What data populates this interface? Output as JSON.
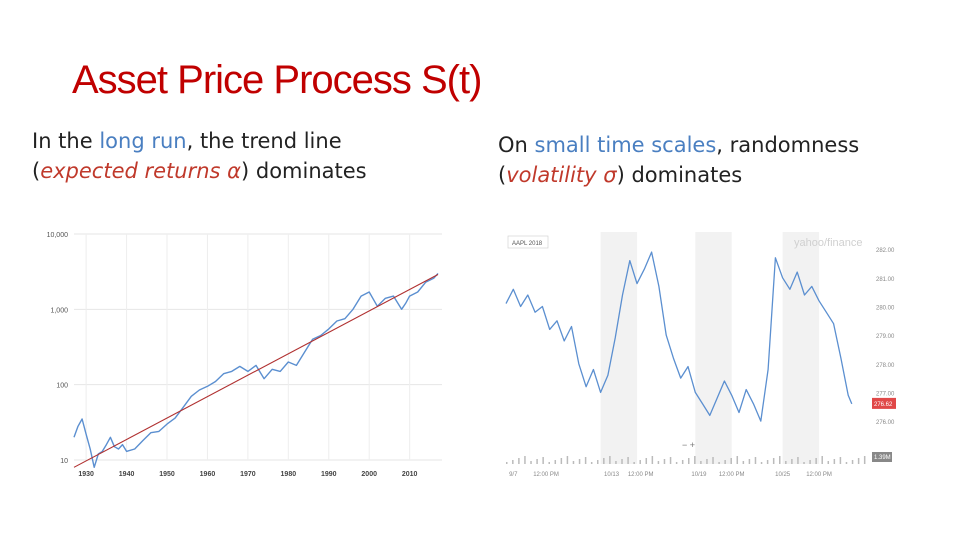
{
  "slide": {
    "title": "Asset Price Process S(t)",
    "left_text": {
      "prefix": "In the ",
      "highlight": "long run",
      "middle": ", the trend line",
      "line2_open": "(",
      "emph": "expected returns α",
      "line2_close": ") dominates"
    },
    "right_text": {
      "prefix": "On ",
      "highlight": "small time scales",
      "middle": ", randomness",
      "line2_open": "(",
      "emph": "volatility σ",
      "line2_close": ") dominates"
    }
  },
  "colors": {
    "title": "#c00000",
    "highlight": "#4a7fc1",
    "emph": "#c0392b",
    "series": "#5b8fd0",
    "trend": "#b03030",
    "price_badge": "#e04848"
  },
  "chart_data": [
    {
      "type": "line",
      "scale": "log",
      "xlim": [
        1927,
        2018
      ],
      "ylim": [
        10,
        10000
      ],
      "y_ticks": [
        {
          "value": 10,
          "label": "10"
        },
        {
          "value": 100,
          "label": "100"
        },
        {
          "value": 1000,
          "label": "1,000"
        },
        {
          "value": 10000,
          "label": "10,000"
        }
      ],
      "x_ticks": [
        {
          "value": 1930,
          "label": "1930"
        },
        {
          "value": 1940,
          "label": "1940"
        },
        {
          "value": 1950,
          "label": "1950"
        },
        {
          "value": 1960,
          "label": "1960"
        },
        {
          "value": 1970,
          "label": "1970"
        },
        {
          "value": 1980,
          "label": "1980"
        },
        {
          "value": 1990,
          "label": "1990"
        },
        {
          "value": 2000,
          "label": "2000"
        },
        {
          "value": 2010,
          "label": "2010"
        }
      ],
      "grid": true,
      "series": [
        {
          "x": [
            1927,
            1928,
            1929,
            1930,
            1931,
            1932,
            1933,
            1934,
            1935,
            1936,
            1937,
            1938,
            1939,
            1940,
            1942,
            1944,
            1946,
            1948,
            1950,
            1952,
            1954,
            1956,
            1958,
            1960,
            1962,
            1964,
            1966,
            1968,
            1970,
            1972,
            1974,
            1976,
            1978,
            1980,
            1982,
            1984,
            1986,
            1988,
            1990,
            1992,
            1994,
            1996,
            1998,
            2000,
            2002,
            2004,
            2006,
            2008,
            2009,
            2010,
            2012,
            2014,
            2016,
            2017
          ],
          "y": [
            20,
            28,
            35,
            22,
            14,
            8,
            12,
            13,
            16,
            20,
            15,
            14,
            16,
            13,
            14,
            18,
            23,
            24,
            30,
            36,
            50,
            70,
            85,
            95,
            110,
            140,
            150,
            175,
            150,
            180,
            120,
            160,
            150,
            200,
            180,
            270,
            400,
            450,
            550,
            700,
            750,
            1000,
            1500,
            1700,
            1100,
            1400,
            1500,
            1000,
            1200,
            1500,
            1700,
            2300,
            2600,
            3000
          ]
        }
      ],
      "trend": {
        "x": [
          1927,
          2017
        ],
        "y": [
          8,
          2900
        ]
      }
    },
    {
      "type": "line",
      "series_label": "AAPL 2018",
      "watermark": "yahoo/finance",
      "y_ticks": [
        {
          "value": 282,
          "label": "282.00"
        },
        {
          "value": 281,
          "label": "281.00"
        },
        {
          "value": 280,
          "label": "280.00"
        },
        {
          "value": 279,
          "label": "279.00"
        },
        {
          "value": 278,
          "label": "278.00"
        },
        {
          "value": 277,
          "label": "277.00"
        },
        {
          "value": 276,
          "label": "276.00"
        }
      ],
      "ylim": [
        275.2,
        282.6
      ],
      "x_ticks": [
        {
          "pos": 0.02,
          "label": "9/7"
        },
        {
          "pos": 0.11,
          "label": "12:00 PM"
        },
        {
          "pos": 0.29,
          "label": "10/13"
        },
        {
          "pos": 0.37,
          "label": "12:00 PM"
        },
        {
          "pos": 0.53,
          "label": "10/19"
        },
        {
          "pos": 0.62,
          "label": "12:00 PM"
        },
        {
          "pos": 0.76,
          "label": "10/25"
        },
        {
          "pos": 0.86,
          "label": "12:00 PM"
        }
      ],
      "price_badge": "276.62",
      "volume_badge": "1.39M",
      "zoom_label": "− +",
      "series": [
        {
          "x": [
            0,
            0.02,
            0.04,
            0.06,
            0.08,
            0.1,
            0.12,
            0.14,
            0.16,
            0.18,
            0.2,
            0.22,
            0.24,
            0.26,
            0.28,
            0.3,
            0.32,
            0.34,
            0.36,
            0.38,
            0.4,
            0.42,
            0.44,
            0.46,
            0.48,
            0.5,
            0.52,
            0.54,
            0.56,
            0.58,
            0.6,
            0.62,
            0.64,
            0.66,
            0.68,
            0.7,
            0.72,
            0.74,
            0.76,
            0.78,
            0.8,
            0.82,
            0.84,
            0.86,
            0.88,
            0.9,
            0.92,
            0.94,
            0.95
          ],
          "y": [
            280.1,
            280.6,
            280.0,
            280.4,
            279.8,
            280.0,
            279.2,
            279.5,
            278.8,
            279.3,
            278.0,
            277.2,
            277.8,
            277.0,
            277.6,
            278.9,
            280.4,
            281.6,
            280.8,
            281.3,
            281.9,
            280.7,
            279.0,
            278.2,
            277.5,
            277.9,
            277.0,
            276.6,
            276.2,
            276.8,
            277.4,
            276.9,
            276.3,
            277.1,
            276.6,
            276.0,
            277.8,
            281.7,
            281.0,
            280.6,
            281.2,
            280.4,
            280.7,
            280.2,
            279.8,
            279.4,
            278.2,
            276.9,
            276.6
          ]
        }
      ]
    }
  ]
}
